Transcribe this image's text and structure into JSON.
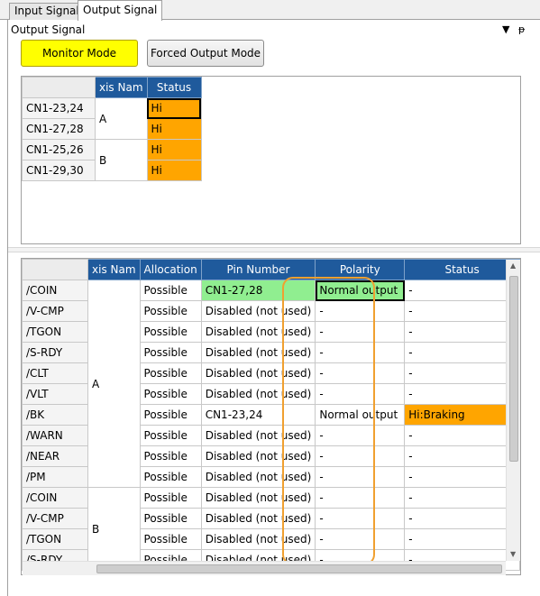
{
  "tabs": [
    {
      "label": "Input Signal"
    },
    {
      "label": "Output Signal"
    }
  ],
  "panel": {
    "title": "Output Signal",
    "dropdown_icon": "▼",
    "pin_icon": "ᵽ"
  },
  "modes": {
    "monitor_label": "Monitor Mode",
    "forced_label": "Forced Output Mode",
    "monitor_color": "#ffff00"
  },
  "grid1": {
    "headers": {
      "axis": "xis Nam",
      "status": "Status"
    },
    "rows": [
      {
        "pin": "CN1-23,24",
        "status": "Hi"
      },
      {
        "pin": "CN1-27,28",
        "status": "Hi"
      },
      {
        "pin": "CN1-25,26",
        "status": "Hi"
      },
      {
        "pin": "CN1-29,30",
        "status": "Hi"
      }
    ],
    "axes": [
      "A",
      "B"
    ]
  },
  "grid2": {
    "headers": {
      "axis": "xis Nam",
      "allocation": "Allocation",
      "pin": "Pin Number",
      "polarity": "Polarity",
      "status": "Status"
    },
    "axes": [
      "A",
      "B"
    ],
    "rows": [
      {
        "signal": "/COIN",
        "allocation": "Possible",
        "pin": "CN1-27,28",
        "polarity": "Normal output",
        "status": "-"
      },
      {
        "signal": "/V-CMP",
        "allocation": "Possible",
        "pin": "Disabled (not used)",
        "polarity": "-",
        "status": "-"
      },
      {
        "signal": "/TGON",
        "allocation": "Possible",
        "pin": "Disabled (not used)",
        "polarity": "-",
        "status": "-"
      },
      {
        "signal": "/S-RDY",
        "allocation": "Possible",
        "pin": "Disabled (not used)",
        "polarity": "-",
        "status": "-"
      },
      {
        "signal": "/CLT",
        "allocation": "Possible",
        "pin": "Disabled (not used)",
        "polarity": "-",
        "status": "-"
      },
      {
        "signal": "/VLT",
        "allocation": "Possible",
        "pin": "Disabled (not used)",
        "polarity": "-",
        "status": "-"
      },
      {
        "signal": "/BK",
        "allocation": "Possible",
        "pin": "CN1-23,24",
        "polarity": "Normal output",
        "status": "Hi:Braking"
      },
      {
        "signal": "/WARN",
        "allocation": "Possible",
        "pin": "Disabled (not used)",
        "polarity": "-",
        "status": "-"
      },
      {
        "signal": "/NEAR",
        "allocation": "Possible",
        "pin": "Disabled (not used)",
        "polarity": "-",
        "status": "-"
      },
      {
        "signal": "/PM",
        "allocation": "Possible",
        "pin": "Disabled (not used)",
        "polarity": "-",
        "status": "-"
      },
      {
        "signal": "/COIN",
        "allocation": "Possible",
        "pin": "Disabled (not used)",
        "polarity": "-",
        "status": "-"
      },
      {
        "signal": "/V-CMP",
        "allocation": "Possible",
        "pin": "Disabled (not used)",
        "polarity": "-",
        "status": "-"
      },
      {
        "signal": "/TGON",
        "allocation": "Possible",
        "pin": "Disabled (not used)",
        "polarity": "-",
        "status": "-"
      },
      {
        "signal": "/S-RDY",
        "allocation": "Possible",
        "pin": "Disabled (not used)",
        "polarity": "-",
        "status": "-"
      }
    ]
  },
  "colors": {
    "header_blue": "#1f5a9c",
    "status_orange": "#ffa500",
    "polarity_green": "#90ee90",
    "highlight_ring": "#f0a030"
  }
}
